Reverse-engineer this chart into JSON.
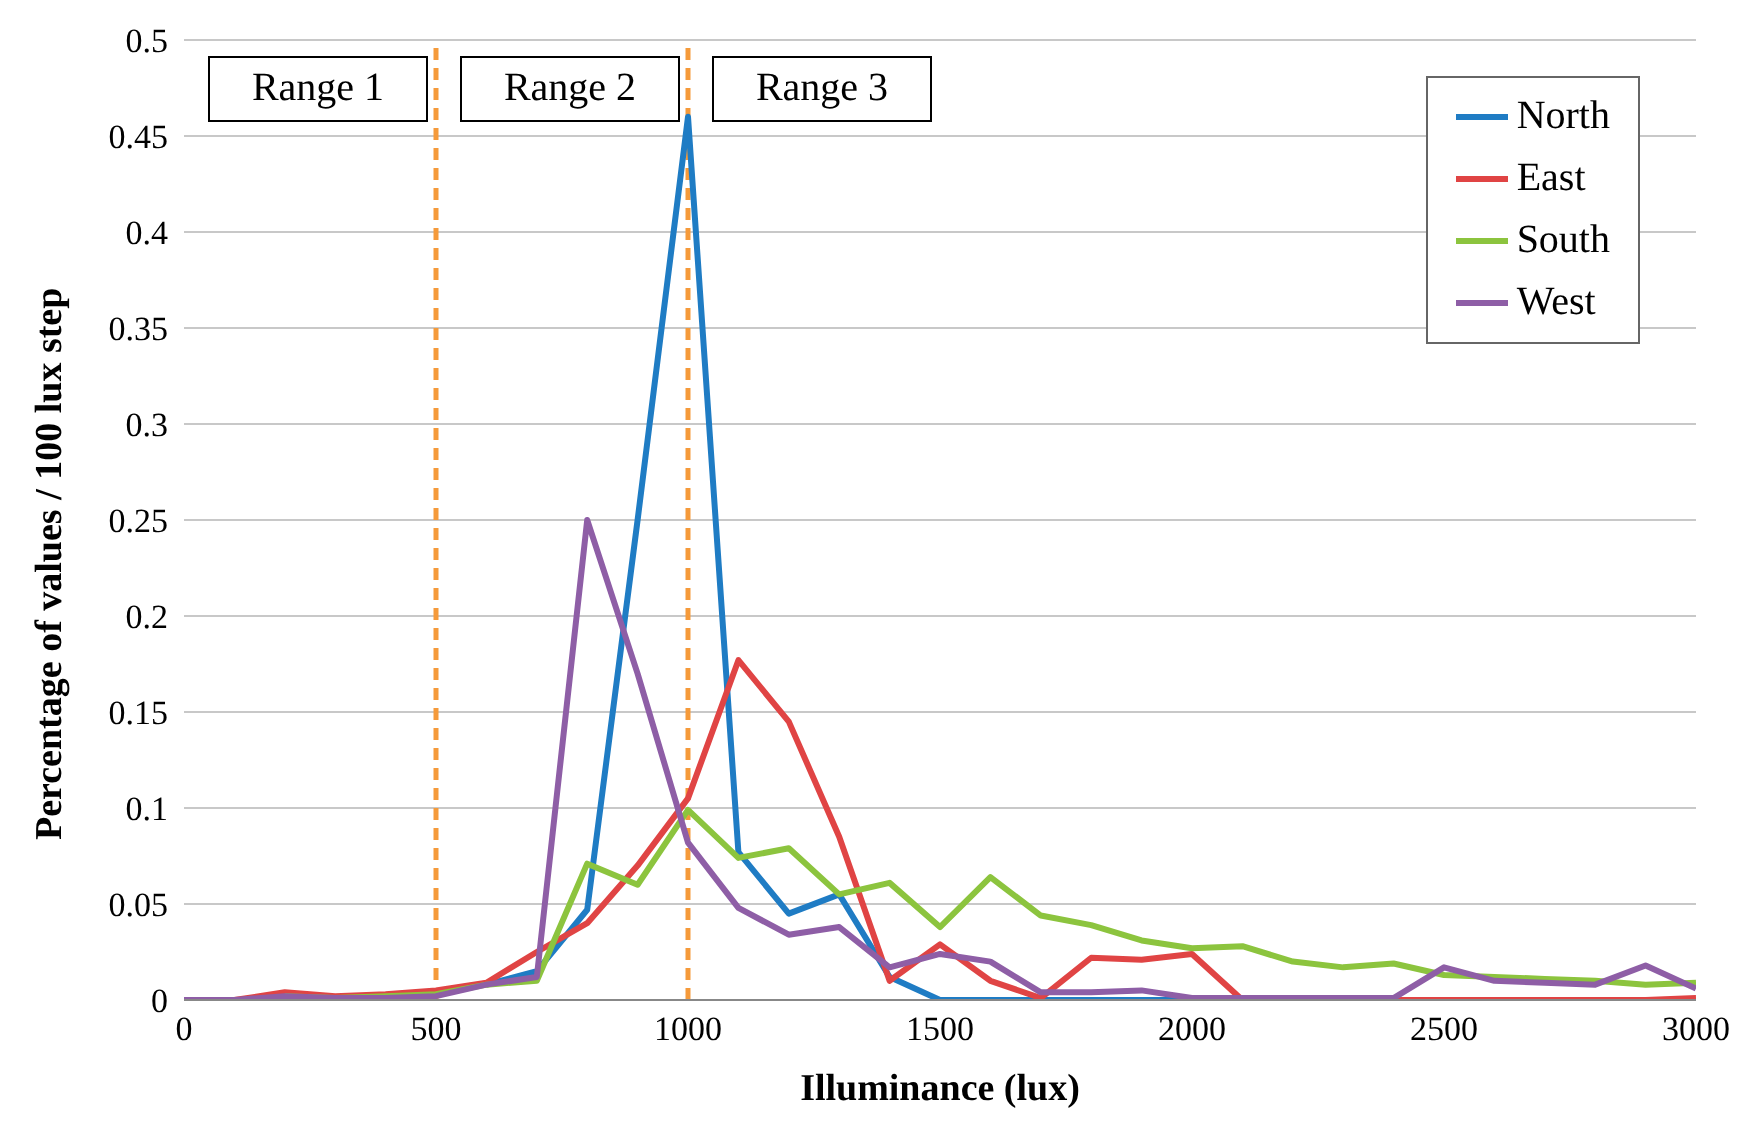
{
  "chart_data": {
    "type": "line",
    "xlabel": "Illuminance (lux)",
    "ylabel": "Percentage of values / 100 lux step",
    "x": [
      0,
      100,
      200,
      300,
      400,
      500,
      600,
      700,
      800,
      900,
      1000,
      1100,
      1200,
      1300,
      1400,
      1500,
      1600,
      1700,
      1800,
      1900,
      2000,
      2100,
      2200,
      2300,
      2400,
      2500,
      2600,
      2700,
      2800,
      2900,
      3000
    ],
    "series": [
      {
        "name": "North",
        "color": "#1f7cc4",
        "values": [
          null,
          null,
          null,
          null,
          null,
          null,
          0.008,
          0.015,
          0.047,
          0.25,
          0.46,
          0.077,
          0.045,
          0.055,
          0.012,
          0,
          0,
          0,
          0,
          0,
          0,
          null,
          null,
          null,
          null,
          null,
          null,
          null,
          null,
          null,
          null
        ]
      },
      {
        "name": "East",
        "color": "#e04444",
        "values": [
          0,
          0,
          0.004,
          0.002,
          0.003,
          0.005,
          0.009,
          0.025,
          0.04,
          0.07,
          0.105,
          0.177,
          0.145,
          0.085,
          0.01,
          0.029,
          0.01,
          0.001,
          0.022,
          0.021,
          0.024,
          0,
          0,
          0,
          0,
          0,
          0,
          0,
          0,
          0,
          0.001
        ]
      },
      {
        "name": "South",
        "color": "#8cc43e",
        "values": [
          null,
          null,
          0.002,
          0.001,
          0.002,
          0.003,
          0.008,
          0.01,
          0.071,
          0.06,
          0.099,
          0.074,
          0.079,
          0.055,
          0.061,
          0.038,
          0.064,
          0.044,
          0.039,
          0.031,
          0.027,
          0.028,
          0.02,
          0.017,
          0.019,
          0.013,
          0.012,
          0.011,
          0.01,
          0.008,
          0.009
        ]
      },
      {
        "name": "West",
        "color": "#8e5ea6",
        "values": [
          0,
          0,
          0.002,
          0.001,
          0.001,
          0.002,
          0.008,
          0.012,
          0.25,
          0.17,
          0.082,
          0.048,
          0.034,
          0.038,
          0.017,
          0.024,
          0.02,
          0.004,
          0.004,
          0.005,
          0.001,
          0.001,
          0.001,
          0.001,
          0.001,
          0.017,
          0.01,
          0.009,
          0.008,
          0.018,
          0.006
        ]
      }
    ],
    "xlim": [
      0,
      3000
    ],
    "xticks": [
      0,
      500,
      1000,
      1500,
      2000,
      2500,
      3000
    ],
    "ylim": [
      0,
      0.5
    ],
    "yticks": [
      0,
      0.05,
      0.1,
      0.15,
      0.2,
      0.25,
      0.3,
      0.35,
      0.4,
      0.45,
      0.5
    ],
    "ref_lines": [
      {
        "axis": "x",
        "value": 500,
        "color": "#f59a3a",
        "line_style": "dashed"
      },
      {
        "axis": "x",
        "value": 1000,
        "color": "#f59a3a",
        "line_style": "dashed"
      }
    ],
    "annotations": [
      "Range 1",
      "Range 2",
      "Range 3"
    ],
    "grid": "y",
    "legend": "top right",
    "marker": "none",
    "line_style": "solid"
  }
}
